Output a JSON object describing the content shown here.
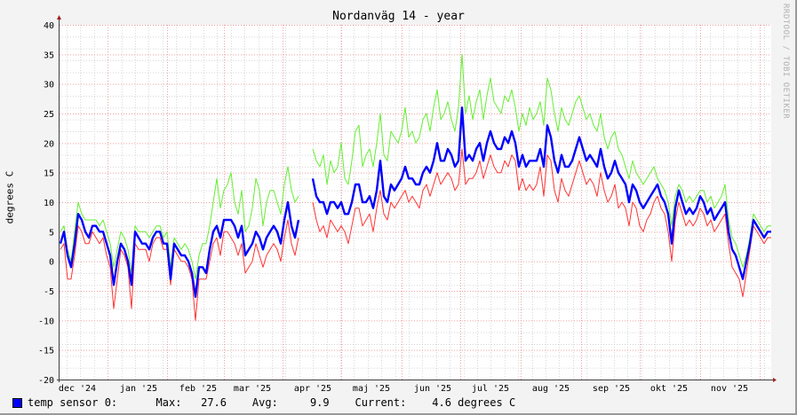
{
  "title": "Nordanväg 14 - year",
  "watermark": "RRDTOOL / TOBI OETIKER",
  "legend": {
    "label": "temp sensor 0:",
    "max_label": "Max:",
    "max_value": "27.6",
    "avg_label": "Avg:",
    "avg_value": "9.9",
    "current_label": "Current:",
    "current_value": "4.6 degrees C",
    "color": "#0000ff"
  },
  "chart_data": {
    "type": "line",
    "title": "Nordanväg 14 - year",
    "ylabel": "degrees C",
    "xlabel": "",
    "ylim": [
      -20,
      40
    ],
    "yticks": [
      40,
      35,
      30,
      25,
      20,
      15,
      10,
      5,
      0,
      -5,
      -10,
      -15,
      -20
    ],
    "xtick_labels": [
      "dec '24",
      "jan '25",
      "feb '25",
      "mar '25",
      "apr '25",
      "maj '25",
      "jun '25",
      "jul '25",
      "aug '25",
      "sep '25",
      "okt '25",
      "nov '25"
    ],
    "grid": true,
    "x_span_days": 365,
    "series": [
      {
        "name": "max",
        "color": "#66ee33",
        "values": [
          5,
          6,
          2,
          0,
          5,
          10,
          8,
          7,
          7,
          7,
          7,
          6,
          7,
          5,
          3,
          -1,
          2,
          5,
          4,
          2,
          -2,
          6,
          5,
          5,
          5,
          4,
          5,
          6,
          6,
          4,
          5,
          -1,
          4,
          3,
          2,
          3,
          2,
          0,
          -3,
          1,
          3,
          3,
          6,
          10,
          14,
          9,
          12,
          13,
          15,
          10,
          8,
          12,
          5,
          6,
          9,
          14,
          12,
          6,
          10,
          12,
          12,
          10,
          8,
          13,
          16,
          12,
          10,
          11,
          null,
          null,
          null,
          19,
          17,
          16,
          18,
          13,
          17,
          15,
          16,
          20,
          14,
          13,
          17,
          22,
          23,
          16,
          18,
          19,
          16,
          20,
          25,
          18,
          17,
          22,
          21,
          20,
          22,
          26,
          21,
          22,
          20,
          21,
          24,
          25,
          22,
          26,
          29,
          24,
          25,
          27,
          24,
          22,
          26,
          35,
          25,
          28,
          24,
          27,
          29,
          24,
          28,
          31,
          27,
          26,
          25,
          28,
          27,
          29,
          26,
          22,
          25,
          23,
          26,
          24,
          25,
          27,
          23,
          31,
          29,
          25,
          22,
          26,
          24,
          23,
          25,
          27,
          28,
          26,
          24,
          25,
          23,
          22,
          25,
          21,
          19,
          21,
          22,
          19,
          18,
          16,
          14,
          17,
          15,
          14,
          13,
          14,
          15,
          16,
          14,
          13,
          12,
          10,
          6,
          11,
          13,
          12,
          10,
          11,
          10,
          11,
          12,
          12,
          10,
          11,
          9,
          10,
          11,
          13,
          7,
          4,
          3,
          1,
          -1,
          1,
          4,
          8,
          7,
          6,
          5,
          6,
          6
        ]
      },
      {
        "name": "min",
        "color": "#ff3333",
        "values": [
          2,
          3,
          -3,
          -3,
          1,
          6,
          5,
          3,
          3,
          5,
          4,
          3,
          4,
          1,
          -1,
          -8,
          -3,
          2,
          1,
          -1,
          -8,
          3,
          2,
          2,
          2,
          0,
          3,
          4,
          4,
          2,
          2,
          -4,
          2,
          1,
          0,
          0,
          -1,
          -3,
          -10,
          -3,
          -3,
          -3,
          0,
          3,
          4,
          1,
          5,
          5,
          4,
          3,
          1,
          3,
          -2,
          -1,
          0,
          3,
          1,
          -1,
          1,
          2,
          3,
          2,
          0,
          4,
          7,
          3,
          1,
          4,
          null,
          null,
          null,
          10,
          7,
          5,
          6,
          4,
          7,
          6,
          5,
          6,
          5,
          3,
          6,
          9,
          9,
          6,
          7,
          8,
          5,
          9,
          12,
          8,
          7,
          10,
          9,
          10,
          11,
          12,
          10,
          11,
          10,
          9,
          12,
          13,
          11,
          13,
          15,
          13,
          14,
          15,
          14,
          12,
          13,
          19,
          13,
          14,
          14,
          15,
          17,
          14,
          16,
          18,
          16,
          15,
          15,
          17,
          16,
          18,
          17,
          12,
          14,
          12,
          13,
          12,
          13,
          16,
          11,
          18,
          17,
          12,
          10,
          14,
          12,
          11,
          13,
          15,
          17,
          15,
          13,
          14,
          13,
          11,
          15,
          12,
          10,
          11,
          13,
          9,
          10,
          9,
          6,
          10,
          9,
          6,
          5,
          7,
          8,
          10,
          11,
          9,
          8,
          5,
          0,
          7,
          10,
          8,
          6,
          7,
          6,
          7,
          9,
          8,
          6,
          7,
          5,
          6,
          7,
          8,
          3,
          -1,
          -2,
          -3,
          -6,
          -2,
          2,
          6,
          5,
          4,
          3,
          4,
          4
        ]
      },
      {
        "name": "temp sensor 0",
        "color": "#0000ff",
        "values": [
          3,
          5,
          1,
          -1,
          3,
          8,
          7,
          5,
          4,
          6,
          6,
          5,
          5,
          3,
          1,
          -4,
          0,
          3,
          2,
          0,
          -4,
          5,
          4,
          3,
          3,
          2,
          4,
          5,
          5,
          3,
          3,
          -3,
          3,
          2,
          1,
          1,
          0,
          -2,
          -6,
          -1,
          -1,
          -2,
          2,
          5,
          6,
          4,
          7,
          7,
          7,
          6,
          4,
          6,
          1,
          2,
          3,
          5,
          4,
          2,
          4,
          5,
          6,
          5,
          3,
          7,
          10,
          6,
          4,
          7,
          null,
          null,
          null,
          14,
          11,
          10,
          10,
          8,
          10,
          10,
          9,
          10,
          8,
          8,
          10,
          13,
          13,
          10,
          10,
          11,
          9,
          12,
          17,
          11,
          10,
          13,
          12,
          13,
          14,
          16,
          14,
          14,
          13,
          13,
          15,
          16,
          15,
          17,
          20,
          17,
          17,
          19,
          18,
          16,
          17,
          26,
          17,
          18,
          17,
          19,
          20,
          17,
          20,
          22,
          20,
          19,
          19,
          21,
          20,
          22,
          20,
          16,
          18,
          16,
          17,
          17,
          17,
          19,
          16,
          23,
          21,
          17,
          15,
          18,
          16,
          16,
          17,
          19,
          21,
          19,
          17,
          18,
          17,
          16,
          19,
          16,
          14,
          15,
          17,
          15,
          14,
          13,
          10,
          13,
          12,
          10,
          9,
          10,
          11,
          12,
          13,
          11,
          10,
          8,
          3,
          9,
          12,
          10,
          8,
          9,
          8,
          9,
          11,
          10,
          8,
          9,
          7,
          8,
          9,
          10,
          5,
          2,
          1,
          -1,
          -3,
          0,
          3,
          7,
          6,
          5,
          4,
          5,
          5
        ]
      }
    ]
  }
}
